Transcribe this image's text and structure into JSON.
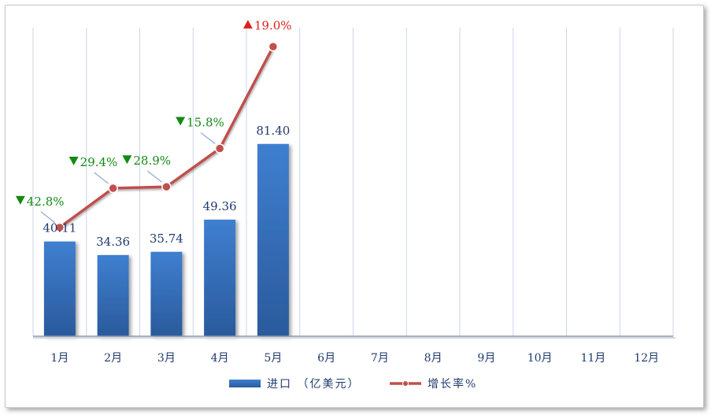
{
  "chart_data": {
    "type": "bar",
    "categories": [
      "1月",
      "2月",
      "3月",
      "4月",
      "5月",
      "6月",
      "7月",
      "8月",
      "9月",
      "10月",
      "11月",
      "12月"
    ],
    "series": [
      {
        "name": "进口（亿美元）",
        "type": "bar",
        "values": [
          40.11,
          34.36,
          35.74,
          49.36,
          81.4,
          null,
          null,
          null,
          null,
          null,
          null,
          null
        ],
        "labels": [
          "40.11",
          "34.36",
          "35.74",
          "49.36",
          "81.40"
        ],
        "color": "#3a72c2"
      },
      {
        "name": "增长率%",
        "type": "line",
        "values": [
          -42.8,
          -29.4,
          -28.9,
          -15.8,
          19.0,
          null,
          null,
          null,
          null,
          null,
          null,
          null
        ],
        "labels": [
          "42.8%",
          "29.4%",
          "28.9%",
          "15.8%",
          "19.0%"
        ],
        "direction": [
          "down",
          "down",
          "down",
          "down",
          "up"
        ],
        "color": "#c0504d"
      }
    ],
    "up_color": "#e0201c",
    "down_color": "#138a13",
    "bar_ylim": [
      0,
      130
    ],
    "rate_ylim": [
      -80,
      25
    ],
    "grid": "vertical",
    "legend": "bottom"
  },
  "legend": {
    "bar_label": "进口 （亿美元）",
    "line_label": "增长率%"
  }
}
